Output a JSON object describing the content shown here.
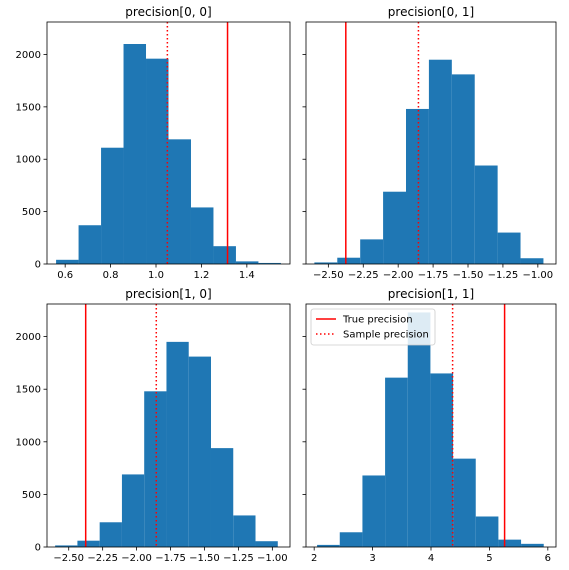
{
  "colors": {
    "bar": "#1f77b4",
    "true_line": "#ff0000",
    "sample_line": "#ff0000",
    "axis": "#000000"
  },
  "legend": {
    "placement": "upper-left",
    "panel_index": 3,
    "items": [
      {
        "label": "True precision",
        "style": "solid"
      },
      {
        "label": "Sample precision",
        "style": "dotted"
      }
    ]
  },
  "chart_data": [
    {
      "type": "bar",
      "title": "precision[0, 0]",
      "xlim": [
        0.52,
        1.59
      ],
      "ylim": [
        0,
        2310
      ],
      "xticks": [
        0.6,
        0.8,
        1.0,
        1.2,
        1.4
      ],
      "xtick_labels": [
        "0.6",
        "0.8",
        "1.0",
        "1.2",
        "1.4"
      ],
      "yticks": [
        0,
        500,
        1000,
        1500,
        2000
      ],
      "ytick_labels": [
        "0",
        "500",
        "1000",
        "1500",
        "2000"
      ],
      "show_ytick_labels": true,
      "bin_edges": [
        0.56,
        0.659,
        0.758,
        0.857,
        0.956,
        1.055,
        1.154,
        1.253,
        1.352,
        1.451,
        1.55
      ],
      "counts": [
        40,
        370,
        1110,
        2100,
        1960,
        1190,
        540,
        170,
        25,
        10
      ],
      "true_value": 1.315,
      "sample_value": 1.05
    },
    {
      "type": "bar",
      "title": "precision[0, 1]",
      "xlim": [
        -2.66,
        -0.87
      ],
      "ylim": [
        0,
        2310
      ],
      "xticks": [
        -2.5,
        -2.25,
        -2.0,
        -1.75,
        -1.5,
        -1.25,
        -1.0
      ],
      "xtick_labels": [
        "−2.50",
        "−2.25",
        "−2.00",
        "−1.75",
        "−1.50",
        "−1.25",
        "−1.00"
      ],
      "yticks": [
        0,
        500,
        1000,
        1500,
        2000
      ],
      "ytick_labels": [
        "0",
        "500",
        "1000",
        "1500",
        "2000"
      ],
      "show_ytick_labels": false,
      "bin_edges": [
        -2.6,
        -2.436,
        -2.272,
        -2.108,
        -1.944,
        -1.78,
        -1.616,
        -1.452,
        -1.288,
        -1.124,
        -0.96
      ],
      "counts": [
        15,
        60,
        235,
        690,
        1480,
        1950,
        1810,
        940,
        300,
        55
      ],
      "true_value": -2.375,
      "sample_value": -1.855
    },
    {
      "type": "bar",
      "title": "precision[1, 0]",
      "xlim": [
        -2.66,
        -0.87
      ],
      "ylim": [
        0,
        2310
      ],
      "xticks": [
        -2.5,
        -2.25,
        -2.0,
        -1.75,
        -1.5,
        -1.25,
        -1.0
      ],
      "xtick_labels": [
        "−2.50",
        "−2.25",
        "−2.00",
        "−1.75",
        "−1.50",
        "−1.25",
        "−1.00"
      ],
      "yticks": [
        0,
        500,
        1000,
        1500,
        2000
      ],
      "ytick_labels": [
        "0",
        "500",
        "1000",
        "1500",
        "2000"
      ],
      "show_ytick_labels": true,
      "bin_edges": [
        -2.6,
        -2.436,
        -2.272,
        -2.108,
        -1.944,
        -1.78,
        -1.616,
        -1.452,
        -1.288,
        -1.124,
        -0.96
      ],
      "counts": [
        15,
        60,
        235,
        690,
        1480,
        1950,
        1810,
        940,
        300,
        55
      ],
      "true_value": -2.375,
      "sample_value": -1.855
    },
    {
      "type": "bar",
      "title": "precision[1, 1]",
      "xlim": [
        1.86,
        6.14
      ],
      "ylim": [
        0,
        2310
      ],
      "xticks": [
        2,
        3,
        4,
        5,
        6
      ],
      "xtick_labels": [
        "2",
        "3",
        "4",
        "5",
        "6"
      ],
      "yticks": [
        0,
        500,
        1000,
        1500,
        2000
      ],
      "ytick_labels": [
        "0",
        "500",
        "1000",
        "1500",
        "2000"
      ],
      "show_ytick_labels": false,
      "bin_edges": [
        2.05,
        2.438,
        2.826,
        3.214,
        3.602,
        3.99,
        4.378,
        4.766,
        5.154,
        5.542,
        5.93
      ],
      "counts": [
        20,
        140,
        680,
        1610,
        2230,
        1650,
        840,
        290,
        70,
        30
      ],
      "true_value": 5.26,
      "sample_value": 4.37
    }
  ]
}
